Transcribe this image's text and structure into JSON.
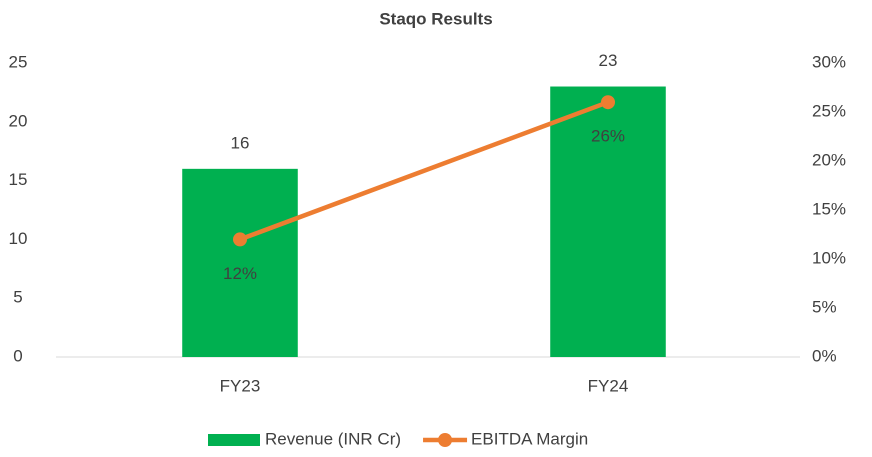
{
  "chart_data": {
    "type": "bar",
    "title": "Staqo Results",
    "categories": [
      "FY23",
      "FY24"
    ],
    "series": [
      {
        "name": "Revenue (INR Cr)",
        "type": "bar",
        "color": "#00b050",
        "values": [
          16,
          23
        ]
      },
      {
        "name": "EBITDA Margin",
        "type": "line",
        "axis": "y2",
        "color": "#ed7d31",
        "values": [
          12,
          26
        ],
        "value_labels": [
          "12%",
          "26%"
        ]
      }
    ],
    "ylim": [
      0,
      25
    ],
    "yticks": [
      0,
      5,
      10,
      15,
      20,
      25
    ],
    "y2lim": [
      0,
      30
    ],
    "y2ticks": [
      {
        "value": 0,
        "label": "0%"
      },
      {
        "value": 5,
        "label": "5%"
      },
      {
        "value": 10,
        "label": "10%"
      },
      {
        "value": 15,
        "label": "15%"
      },
      {
        "value": 20,
        "label": "20%"
      },
      {
        "value": 25,
        "label": "25%"
      },
      {
        "value": 30,
        "label": "30%"
      }
    ],
    "legend": "bottom",
    "grid": false
  }
}
